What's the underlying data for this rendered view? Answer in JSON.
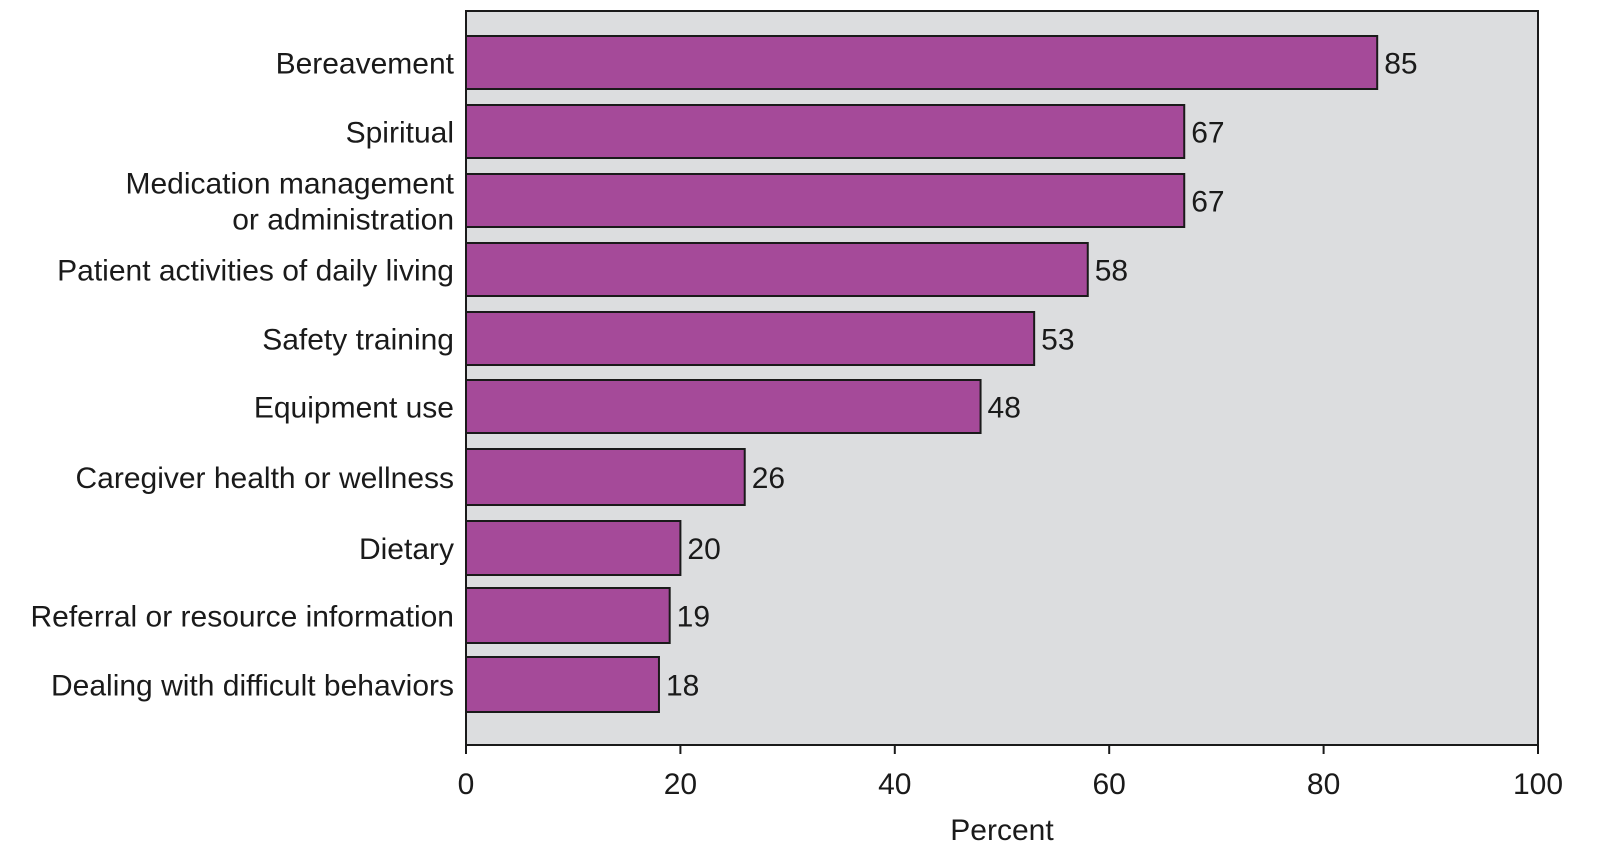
{
  "chart_data": {
    "type": "bar",
    "orientation": "horizontal",
    "categories": [
      [
        "Bereavement"
      ],
      [
        "Spiritual"
      ],
      [
        "Medication management",
        "or administration"
      ],
      [
        "Patient activities of daily living"
      ],
      [
        "Safety training"
      ],
      [
        "Equipment use"
      ],
      [
        "Caregiver health or wellness"
      ],
      [
        "Dietary"
      ],
      [
        "Referral or resource information"
      ],
      [
        "Dealing with difficult behaviors"
      ]
    ],
    "values": [
      85,
      67,
      67,
      58,
      53,
      48,
      26,
      20,
      19,
      18
    ],
    "value_labels": [
      "85",
      "67",
      "67",
      "58",
      "53",
      "48",
      "26",
      "20",
      "19",
      "18"
    ],
    "title": "",
    "xlabel": "Percent",
    "ylabel": "",
    "xlim": [
      0,
      100
    ],
    "xticks": [
      0,
      20,
      40,
      60,
      80,
      100
    ],
    "xtick_labels": [
      "0",
      "20",
      "40",
      "60",
      "80",
      "100"
    ],
    "grid": false,
    "legend": "none",
    "colors": {
      "bar_fill": "#a54a99",
      "bar_stroke": "#1a1a1a",
      "plot_background": "#dcdddf",
      "axis": "#1a1a1a"
    }
  }
}
